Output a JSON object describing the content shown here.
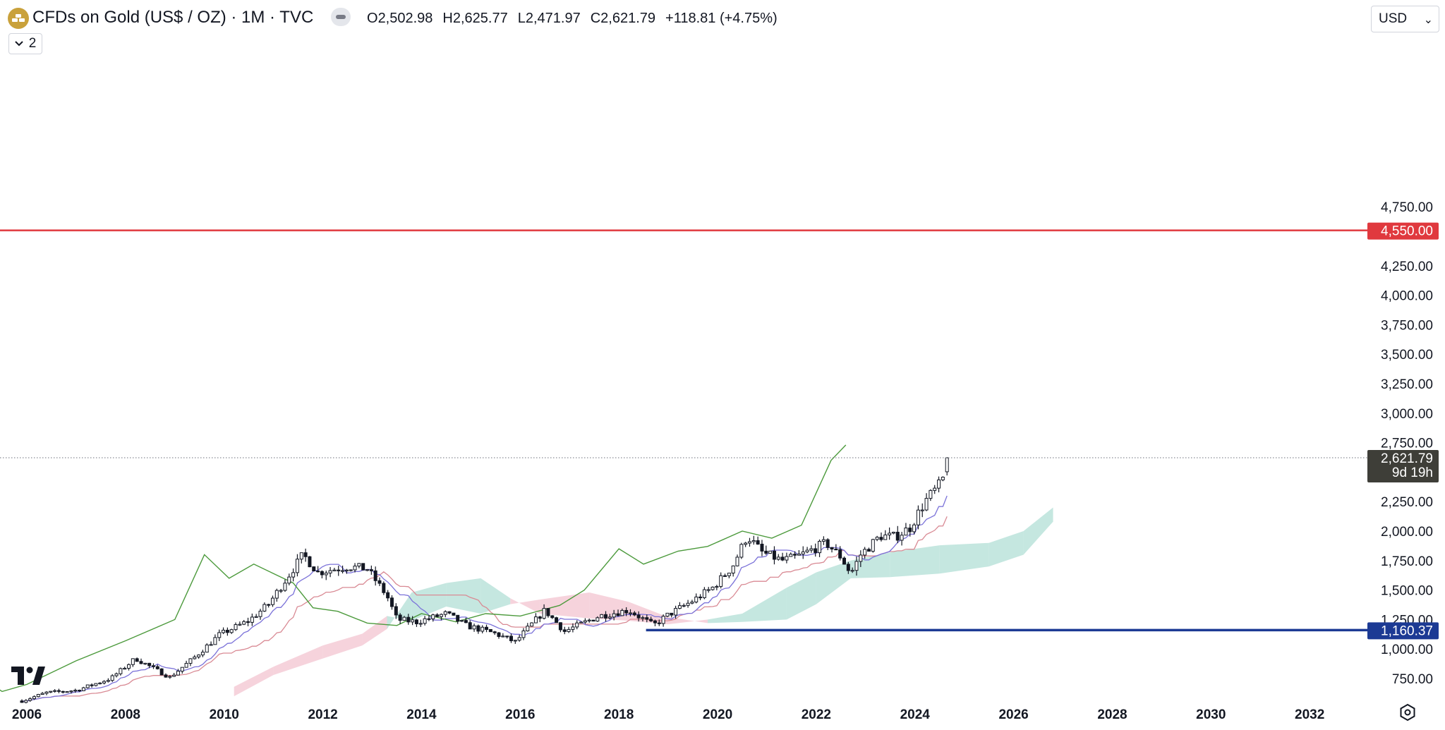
{
  "header": {
    "symbol_title": "CFDs on Gold (US$ / OZ) · 1M · TVC",
    "ohlc": [
      {
        "key": "O",
        "value": "2,502.98"
      },
      {
        "key": "H",
        "value": "2,625.77"
      },
      {
        "key": "L",
        "value": "2,471.97"
      },
      {
        "key": "C",
        "value": "2,621.79"
      }
    ],
    "change": "+118.81 (+4.75%)",
    "indicators_count": "2",
    "currency": "USD"
  },
  "icons": {
    "symbol_logo": "gold-bars-icon",
    "status": "market-status-icon",
    "chevron": "chevron-down-icon",
    "tradingview_logo": "tradingview-logo",
    "settings": "chart-settings-icon"
  },
  "colors": {
    "up_candle": "#ffffff",
    "down_candle": "#131722",
    "resistance_line": "#e0393e",
    "support_line": "#1c3a94",
    "conversion_line": "#7b72d9",
    "base_line": "#d98a94",
    "lagging_span": "#4c9a3c",
    "cloud_bullish": "#b2dfd6",
    "cloud_bearish": "#f3c4d0",
    "last_price_tag": "#3e3e38"
  },
  "chart_data": {
    "type": "candlestick",
    "title": "CFDs on Gold (US$ / OZ) · 1M · TVC",
    "x_axis": {
      "ticks": [
        "2006",
        "2008",
        "2010",
        "2012",
        "2014",
        "2016",
        "2018",
        "2020",
        "2022",
        "2024",
        "2026",
        "2028",
        "2030",
        "2032"
      ]
    },
    "y_axis": {
      "ticks": [
        "750.00",
        "1,000.00",
        "1,250.00",
        "1,500.00",
        "1,750.00",
        "2,000.00",
        "2,250.00",
        "2,750.00",
        "3,000.00",
        "3,250.00",
        "3,500.00",
        "3,750.00",
        "4,000.00",
        "4,250.00",
        "4,750.00"
      ],
      "range": [
        620,
        4850
      ]
    },
    "price_lines": [
      {
        "name": "resistance",
        "value": 4550.0,
        "label": "4,550.00",
        "style": "solid",
        "color": "#e0393e",
        "from_date": 2005.0
      },
      {
        "name": "support",
        "value": 1160.37,
        "label": "1,160.37",
        "style": "solid",
        "color": "#1c3a94",
        "from_date": 2018.55
      }
    ],
    "last_price": {
      "value": 2621.79,
      "label": "2,621.79",
      "countdown": "9d 19h"
    },
    "price_anchors": [
      [
        2005.9,
        560
      ],
      [
        2006.4,
        630
      ],
      [
        2007.0,
        650
      ],
      [
        2007.7,
        750
      ],
      [
        2008.2,
        920
      ],
      [
        2008.9,
        760
      ],
      [
        2009.4,
        930
      ],
      [
        2009.9,
        1120
      ],
      [
        2010.5,
        1240
      ],
      [
        2010.9,
        1380
      ],
      [
        2011.6,
        1800
      ],
      [
        2011.9,
        1650
      ],
      [
        2012.5,
        1700
      ],
      [
        2012.9,
        1680
      ],
      [
        2013.3,
        1450
      ],
      [
        2013.5,
        1250
      ],
      [
        2013.9,
        1230
      ],
      [
        2014.5,
        1300
      ],
      [
        2014.9,
        1200
      ],
      [
        2015.5,
        1130
      ],
      [
        2015.9,
        1060
      ],
      [
        2016.5,
        1330
      ],
      [
        2016.9,
        1150
      ],
      [
        2017.6,
        1280
      ],
      [
        2018.2,
        1330
      ],
      [
        2018.7,
        1200
      ],
      [
        2019.0,
        1290
      ],
      [
        2019.5,
        1410
      ],
      [
        2019.9,
        1520
      ],
      [
        2020.3,
        1700
      ],
      [
        2020.6,
        1960
      ],
      [
        2020.9,
        1820
      ],
      [
        2021.3,
        1750
      ],
      [
        2021.6,
        1780
      ],
      [
        2022.2,
        1900
      ],
      [
        2022.5,
        1780
      ],
      [
        2022.7,
        1640
      ],
      [
        2022.9,
        1800
      ],
      [
        2023.3,
        1960
      ],
      [
        2023.6,
        1950
      ],
      [
        2023.9,
        2030
      ],
      [
        2024.2,
        2250
      ],
      [
        2024.5,
        2390
      ],
      [
        2024.65,
        2502
      ],
      [
        2024.72,
        2621.79
      ]
    ],
    "lagging_span_anchors": [
      [
        2005.0,
        780
      ],
      [
        2005.5,
        640
      ],
      [
        2006.0,
        700
      ],
      [
        2007.0,
        900
      ],
      [
        2008.0,
        1070
      ],
      [
        2009.0,
        1250
      ],
      [
        2009.6,
        1800
      ],
      [
        2010.1,
        1600
      ],
      [
        2010.6,
        1720
      ],
      [
        2011.0,
        1640
      ],
      [
        2011.4,
        1560
      ],
      [
        2011.8,
        1350
      ],
      [
        2012.3,
        1320
      ],
      [
        2012.9,
        1220
      ],
      [
        2013.5,
        1200
      ],
      [
        2014.0,
        1300
      ],
      [
        2014.7,
        1230
      ],
      [
        2015.3,
        1300
      ],
      [
        2016.0,
        1280
      ],
      [
        2016.8,
        1370
      ],
      [
        2017.3,
        1500
      ],
      [
        2018.0,
        1850
      ],
      [
        2018.5,
        1720
      ],
      [
        2019.2,
        1830
      ],
      [
        2019.8,
        1870
      ],
      [
        2020.5,
        2000
      ],
      [
        2021.1,
        1940
      ],
      [
        2021.7,
        2050
      ],
      [
        2022.3,
        2600
      ],
      [
        2022.6,
        2730
      ]
    ],
    "cloud": [
      {
        "date": 2010.2,
        "a": 600,
        "b": 680
      },
      {
        "date": 2011.0,
        "a": 780,
        "b": 850
      },
      {
        "date": 2012.0,
        "a": 920,
        "b": 1030
      },
      {
        "date": 2012.8,
        "a": 1030,
        "b": 1130
      },
      {
        "date": 2013.3,
        "a": 1170,
        "b": 1280
      },
      {
        "date": 2013.8,
        "a": 1480,
        "b": 1240
      },
      {
        "date": 2014.5,
        "a": 1560,
        "b": 1360
      },
      {
        "date": 2015.2,
        "a": 1600,
        "b": 1300
      },
      {
        "date": 2015.8,
        "a": 1430,
        "b": 1380
      },
      {
        "date": 2016.4,
        "a": 1300,
        "b": 1420
      },
      {
        "date": 2017.4,
        "a": 1260,
        "b": 1480
      },
      {
        "date": 2018.2,
        "a": 1240,
        "b": 1400
      },
      {
        "date": 2019.0,
        "a": 1210,
        "b": 1270
      },
      {
        "date": 2019.8,
        "a": 1250,
        "b": 1220
      },
      {
        "date": 2020.5,
        "a": 1300,
        "b": 1230
      },
      {
        "date": 2021.4,
        "a": 1520,
        "b": 1250
      },
      {
        "date": 2022.0,
        "a": 1650,
        "b": 1380
      },
      {
        "date": 2022.7,
        "a": 1750,
        "b": 1600
      },
      {
        "date": 2023.5,
        "a": 1820,
        "b": 1610
      },
      {
        "date": 2024.5,
        "a": 1880,
        "b": 1640
      },
      {
        "date": 2025.5,
        "a": 1900,
        "b": 1700
      },
      {
        "date": 2026.2,
        "a": 2000,
        "b": 1800
      },
      {
        "date": 2026.8,
        "a": 2200,
        "b": 2080
      }
    ]
  }
}
